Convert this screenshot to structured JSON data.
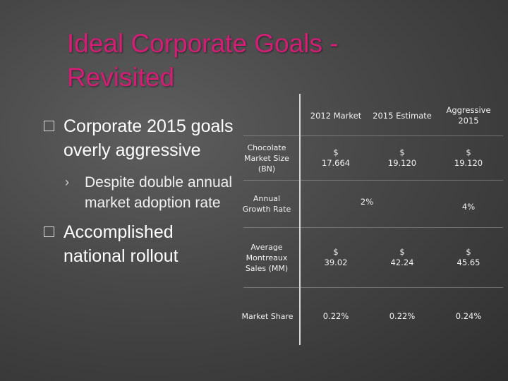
{
  "slide": {
    "title": "Ideal Corporate Goals - Revisited",
    "bullets": [
      {
        "text": "Corporate 2015 goals overly aggressive",
        "sub": [
          "Despite double annual market adoption rate"
        ]
      },
      {
        "text": "Accomplished national rollout",
        "sub": []
      }
    ]
  },
  "table": {
    "headers": [
      "2012 Market",
      "2015 Estimate",
      "Aggressive\n2015"
    ],
    "rows": [
      {
        "label": "Chocolate\nMarket Size\n(BN)",
        "cells": [
          "$\n17.664",
          "$\n19.120",
          "$\n19.120"
        ]
      },
      {
        "label": "Annual\nGrowth Rate",
        "cells": [
          "2%",
          "4%"
        ]
      },
      {
        "label": "Average\nMontreaux\nSales (MM)",
        "cells": [
          "$\n39.02",
          "$\n42.24",
          "$\n45.65"
        ]
      },
      {
        "label": "Market Share",
        "cells": [
          "0.22%",
          "0.22%",
          "0.24%"
        ]
      }
    ]
  },
  "colors": {
    "title": "#d41e76",
    "text": "#ffffff",
    "background": "#474747"
  },
  "icons": {
    "bullet_level1": "square-outline-icon",
    "bullet_level2": "chevron-right-icon"
  }
}
